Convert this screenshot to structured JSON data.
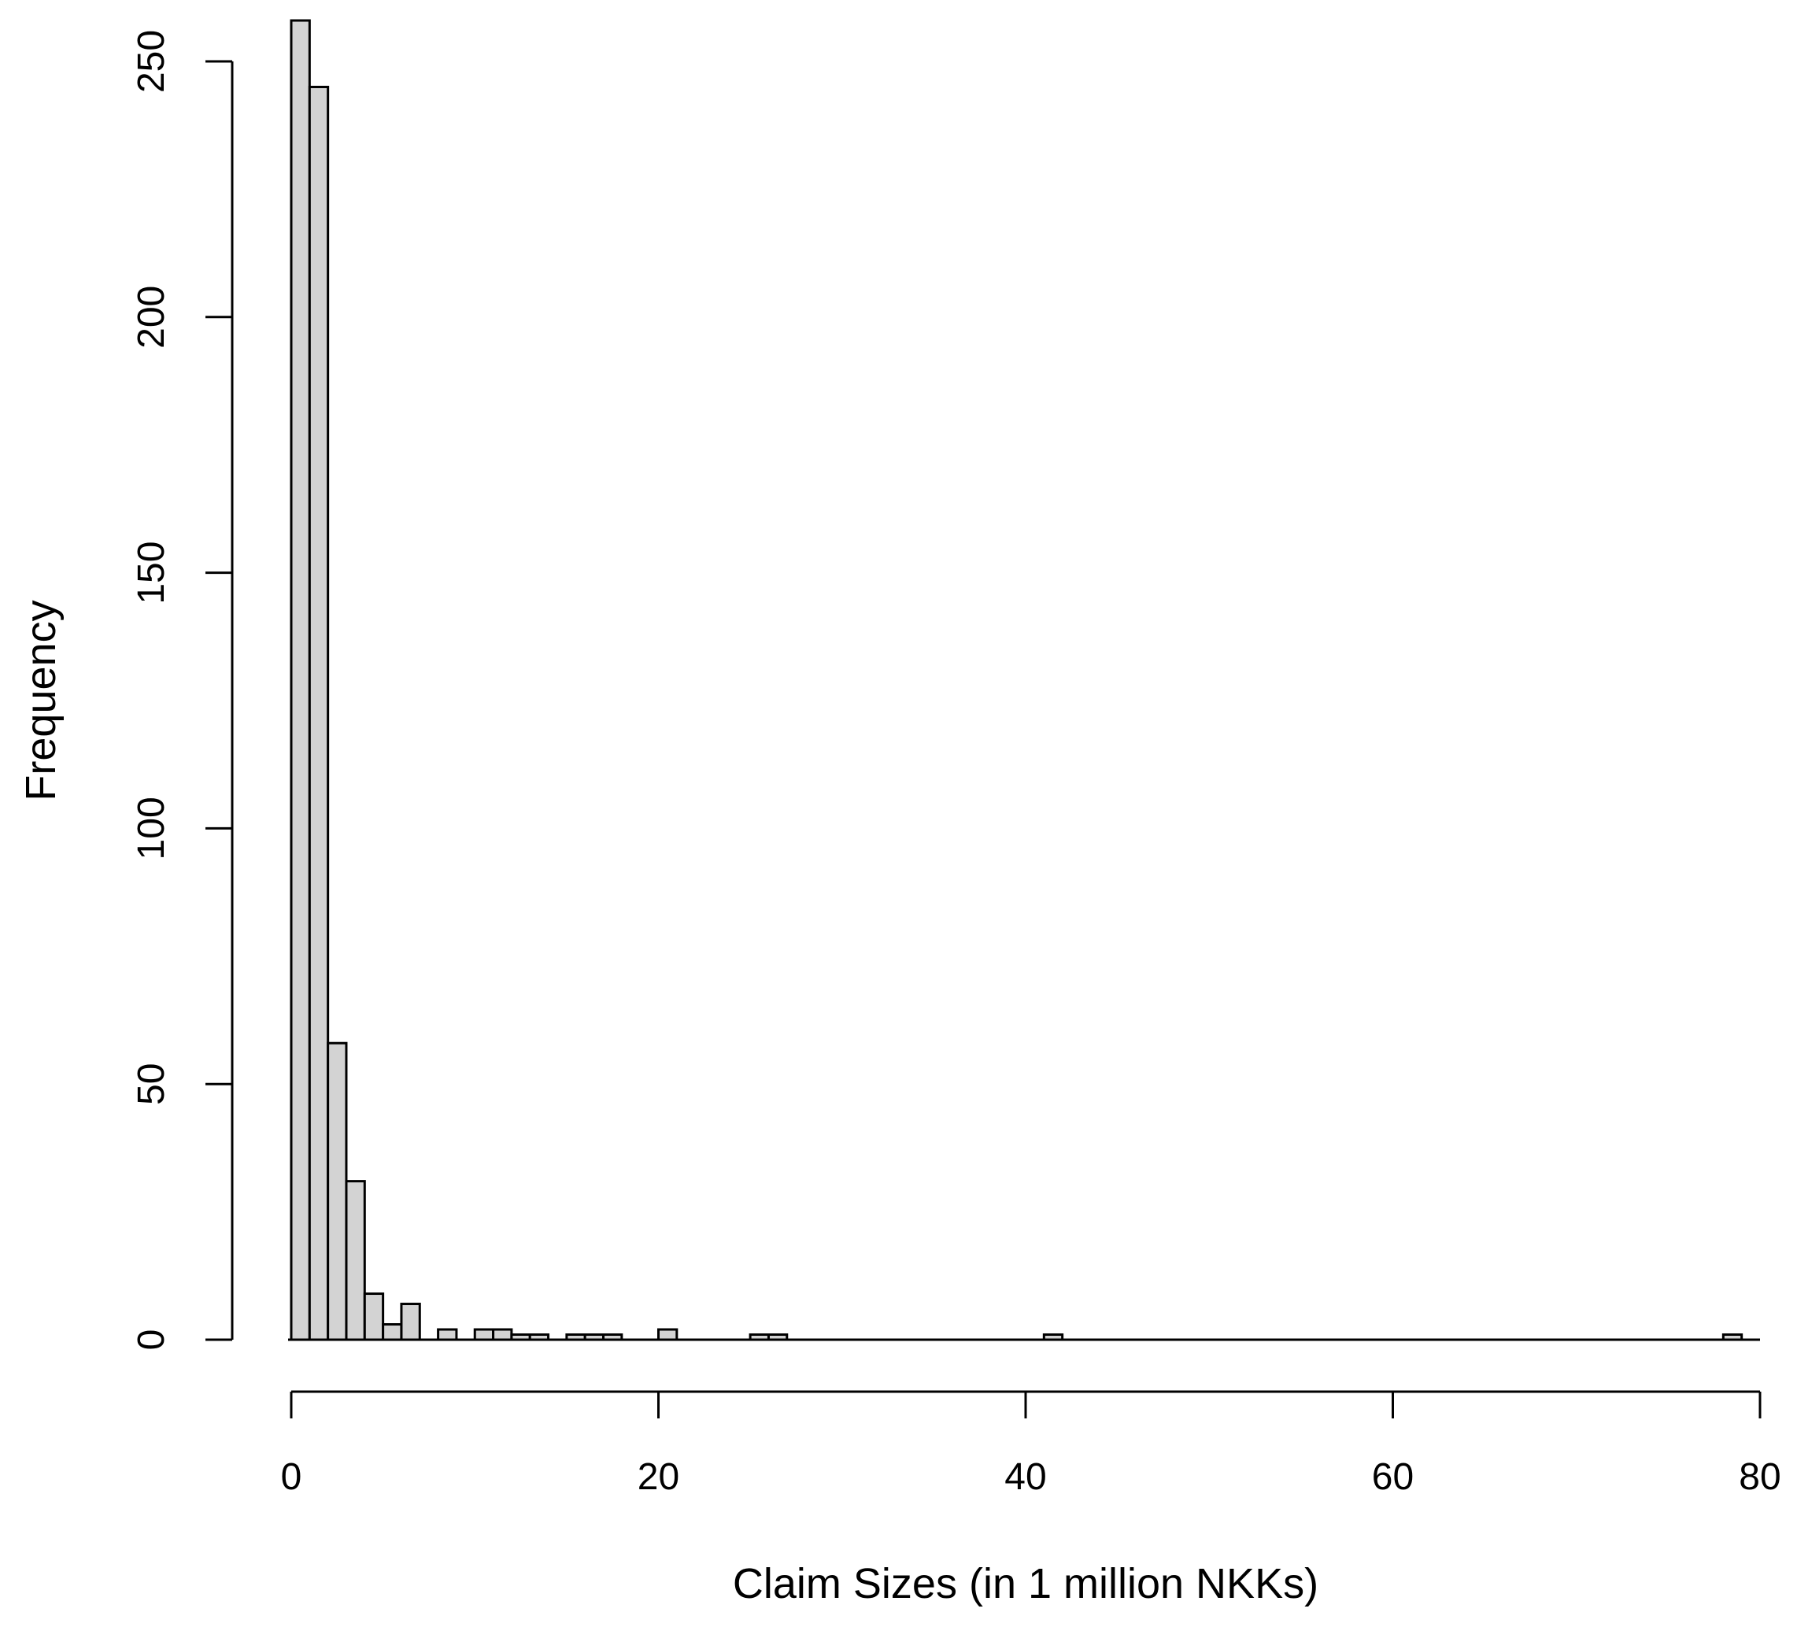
{
  "chart_data": {
    "type": "bar",
    "subtype": "histogram",
    "title": "",
    "xlabel": "Claim Sizes (in 1 million NKKs)",
    "ylabel": "Frequency",
    "xlim": [
      0,
      80
    ],
    "ylim": [
      0,
      250
    ],
    "x_ticks": [
      0,
      20,
      40,
      60,
      80
    ],
    "y_ticks": [
      0,
      50,
      100,
      150,
      200,
      250
    ],
    "bin_width": 1,
    "bins": [
      {
        "x0": 0,
        "x1": 1,
        "count": 258
      },
      {
        "x0": 1,
        "x1": 2,
        "count": 245
      },
      {
        "x0": 2,
        "x1": 3,
        "count": 58
      },
      {
        "x0": 3,
        "x1": 4,
        "count": 31
      },
      {
        "x0": 4,
        "x1": 5,
        "count": 9
      },
      {
        "x0": 5,
        "x1": 6,
        "count": 3
      },
      {
        "x0": 6,
        "x1": 7,
        "count": 7
      },
      {
        "x0": 8,
        "x1": 9,
        "count": 2
      },
      {
        "x0": 10,
        "x1": 11,
        "count": 2
      },
      {
        "x0": 11,
        "x1": 12,
        "count": 2
      },
      {
        "x0": 12,
        "x1": 13,
        "count": 1
      },
      {
        "x0": 13,
        "x1": 14,
        "count": 1
      },
      {
        "x0": 15,
        "x1": 16,
        "count": 1
      },
      {
        "x0": 16,
        "x1": 17,
        "count": 1
      },
      {
        "x0": 17,
        "x1": 18,
        "count": 1
      },
      {
        "x0": 20,
        "x1": 21,
        "count": 2
      },
      {
        "x0": 25,
        "x1": 26,
        "count": 1
      },
      {
        "x0": 26,
        "x1": 27,
        "count": 1
      },
      {
        "x0": 41,
        "x1": 42,
        "count": 1
      },
      {
        "x0": 78,
        "x1": 79,
        "count": 1
      }
    ],
    "bar_color": "#d3d3d3",
    "bar_edge_color": "#000000",
    "grid": false,
    "legend": "none"
  }
}
